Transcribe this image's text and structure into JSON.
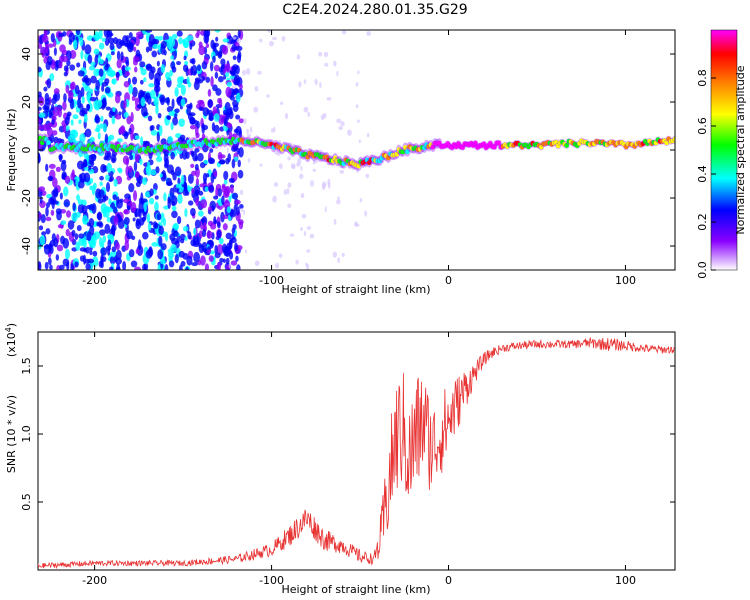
{
  "title": "C2E4.2024.280.01.35.G29",
  "chart_data": [
    {
      "type": "heatmap",
      "title": "C2E4.2024.280.01.35.G29",
      "xlabel": "Height of straight line (km)",
      "ylabel": "Frequency (Hz)",
      "xlim": [
        -232,
        128
      ],
      "ylim": [
        -50,
        50
      ],
      "xticks": [
        -200,
        -100,
        0,
        100
      ],
      "yticks": [
        -40,
        -20,
        0,
        20,
        40
      ],
      "colorbar": {
        "label": "Normalized spectral amplitude",
        "range": [
          0,
          1
        ],
        "ticks": [
          "0.0",
          "0.2",
          "0.4",
          "0.6",
          "0.8"
        ],
        "colors": [
          "#ffffff",
          "#8a00ff",
          "#0000ff",
          "#00ffff",
          "#00ff00",
          "#ffff00",
          "#ff7f00",
          "#ff0000",
          "#ff00ff"
        ]
      },
      "ridge": {
        "description_points": [
          {
            "x": -225,
            "f": 1
          },
          {
            "x": -185,
            "f": 1
          },
          {
            "x": -170,
            "f": 0
          },
          {
            "x": -140,
            "f": 3
          },
          {
            "x": -115,
            "f": 4
          },
          {
            "x": -95,
            "f": 1
          },
          {
            "x": -80,
            "f": -2
          },
          {
            "x": -65,
            "f": -4
          },
          {
            "x": -52,
            "f": -6
          },
          {
            "x": -40,
            "f": -4
          },
          {
            "x": -25,
            "f": 0
          },
          {
            "x": -10,
            "f": 2
          },
          {
            "x": 20,
            "f": 2
          },
          {
            "x": 50,
            "f": 2
          },
          {
            "x": 80,
            "f": 3
          },
          {
            "x": 100,
            "f": 2
          },
          {
            "x": 128,
            "f": 4
          }
        ],
        "peak_x_range": [
          -10,
          30
        ]
      }
    },
    {
      "type": "line",
      "xlabel": "Height of straight line (km)",
      "ylabel": "SNR (10 * v/v)",
      "yscale_label": "(x10",
      "yscale_exp": "4",
      "xlim": [
        -232,
        128
      ],
      "ylim": [
        0,
        1.75
      ],
      "xticks": [
        -200,
        -100,
        0,
        100
      ],
      "yticks": [
        "0.5",
        "1.0",
        "1.5"
      ],
      "ytick_values": [
        0.5,
        1.0,
        1.5
      ],
      "series": [
        {
          "color": "#e83232",
          "x": [
            -232,
            -200,
            -150,
            -120,
            -100,
            -90,
            -80,
            -70,
            -60,
            -50,
            -42,
            -38,
            -34,
            -30,
            -26,
            -22,
            -18,
            -14,
            -10,
            -6,
            -2,
            2,
            6,
            10,
            15,
            20,
            25,
            30,
            40,
            50,
            60,
            70,
            80,
            90,
            100,
            110,
            120,
            128
          ],
          "y": [
            0.03,
            0.05,
            0.05,
            0.08,
            0.15,
            0.25,
            0.38,
            0.22,
            0.18,
            0.1,
            0.08,
            0.25,
            0.6,
            0.95,
            1.05,
            0.8,
            1.0,
            1.1,
            0.9,
            0.95,
            1.05,
            1.15,
            1.25,
            1.35,
            1.45,
            1.55,
            1.6,
            1.63,
            1.65,
            1.66,
            1.66,
            1.66,
            1.67,
            1.66,
            1.65,
            1.63,
            1.62,
            1.62
          ],
          "noise": [
            0.02,
            0.02,
            0.02,
            0.03,
            0.05,
            0.08,
            0.1,
            0.08,
            0.06,
            0.05,
            0.04,
            0.2,
            0.35,
            0.45,
            0.45,
            0.45,
            0.45,
            0.4,
            0.35,
            0.3,
            0.3,
            0.25,
            0.2,
            0.15,
            0.08,
            0.05,
            0.04,
            0.03,
            0.03,
            0.03,
            0.03,
            0.03,
            0.04,
            0.05,
            0.04,
            0.03,
            0.03,
            0.03
          ]
        }
      ]
    }
  ]
}
